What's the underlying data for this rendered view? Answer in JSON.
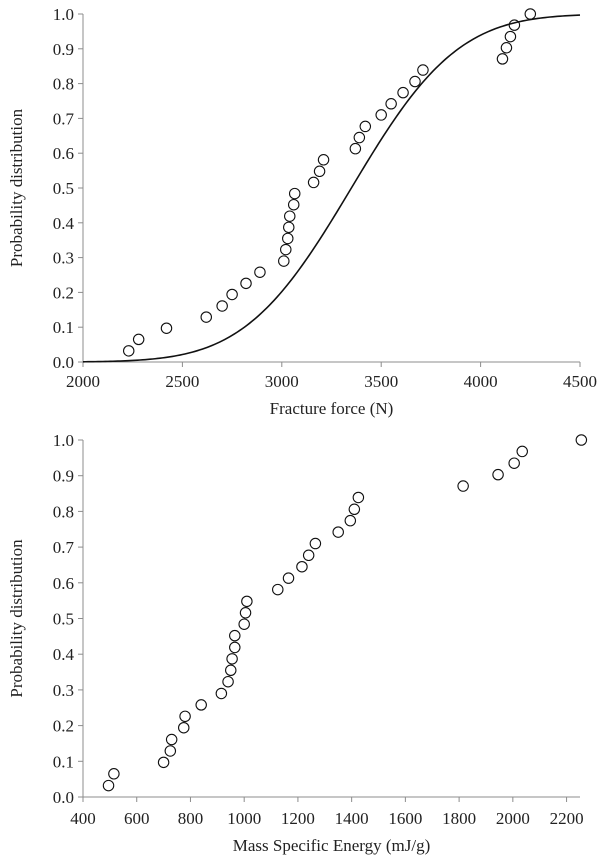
{
  "chart_data": [
    {
      "type": "scatter",
      "xlabel": "Fracture force (N)",
      "ylabel": "Probability distribution",
      "xlim": [
        2000,
        4500
      ],
      "ylim": [
        0.0,
        1.0
      ],
      "xticks": [
        "2000",
        "2500",
        "3000",
        "3500",
        "4000",
        "4500"
      ],
      "yticks": [
        "0.0",
        "0.1",
        "0.2",
        "0.3",
        "0.4",
        "0.5",
        "0.6",
        "0.7",
        "0.8",
        "0.9",
        "1.0"
      ],
      "grid": false,
      "marker": "open-circle",
      "points": [
        [
          2230,
          0.032
        ],
        [
          2280,
          0.065
        ],
        [
          2420,
          0.097
        ],
        [
          2620,
          0.129
        ],
        [
          2700,
          0.161
        ],
        [
          2750,
          0.194
        ],
        [
          2820,
          0.226
        ],
        [
          2890,
          0.258
        ],
        [
          3010,
          0.29
        ],
        [
          3020,
          0.323
        ],
        [
          3030,
          0.355
        ],
        [
          3035,
          0.387
        ],
        [
          3040,
          0.419
        ],
        [
          3060,
          0.452
        ],
        [
          3065,
          0.484
        ],
        [
          3160,
          0.516
        ],
        [
          3190,
          0.548
        ],
        [
          3210,
          0.581
        ],
        [
          3370,
          0.613
        ],
        [
          3390,
          0.645
        ],
        [
          3420,
          0.677
        ],
        [
          3500,
          0.71
        ],
        [
          3550,
          0.742
        ],
        [
          3610,
          0.774
        ],
        [
          3670,
          0.806
        ],
        [
          3710,
          0.839
        ],
        [
          4110,
          0.871
        ],
        [
          4130,
          0.903
        ],
        [
          4150,
          0.935
        ],
        [
          4170,
          0.968
        ],
        [
          4250,
          1.0
        ]
      ],
      "fit_curve": {
        "type": "normal-cdf",
        "mean": 3350,
        "sd": 420
      }
    },
    {
      "type": "scatter",
      "xlabel": "Mass Specific Energy (mJ/g)",
      "ylabel": "Probability distribution",
      "xlim": [
        400,
        2250
      ],
      "ylim": [
        0.0,
        1.0
      ],
      "xticks": [
        "400",
        "600",
        "800",
        "1000",
        "1200",
        "1400",
        "1600",
        "1800",
        "2000",
        "2200"
      ],
      "yticks": [
        "0.0",
        "0.1",
        "0.2",
        "0.3",
        "0.4",
        "0.5",
        "0.6",
        "0.7",
        "0.8",
        "0.9",
        "1.0"
      ],
      "grid": false,
      "marker": "open-circle",
      "points": [
        [
          495,
          0.032
        ],
        [
          515,
          0.065
        ],
        [
          700,
          0.097
        ],
        [
          725,
          0.129
        ],
        [
          730,
          0.161
        ],
        [
          775,
          0.194
        ],
        [
          780,
          0.226
        ],
        [
          840,
          0.258
        ],
        [
          915,
          0.29
        ],
        [
          940,
          0.323
        ],
        [
          950,
          0.355
        ],
        [
          955,
          0.387
        ],
        [
          965,
          0.419
        ],
        [
          965,
          0.452
        ],
        [
          1000,
          0.484
        ],
        [
          1005,
          0.516
        ],
        [
          1010,
          0.548
        ],
        [
          1125,
          0.581
        ],
        [
          1165,
          0.613
        ],
        [
          1215,
          0.645
        ],
        [
          1240,
          0.677
        ],
        [
          1265,
          0.71
        ],
        [
          1350,
          0.742
        ],
        [
          1395,
          0.774
        ],
        [
          1410,
          0.806
        ],
        [
          1425,
          0.839
        ],
        [
          1815,
          0.871
        ],
        [
          1945,
          0.903
        ],
        [
          2005,
          0.935
        ],
        [
          2035,
          0.968
        ],
        [
          2255,
          1.0
        ]
      ]
    }
  ]
}
